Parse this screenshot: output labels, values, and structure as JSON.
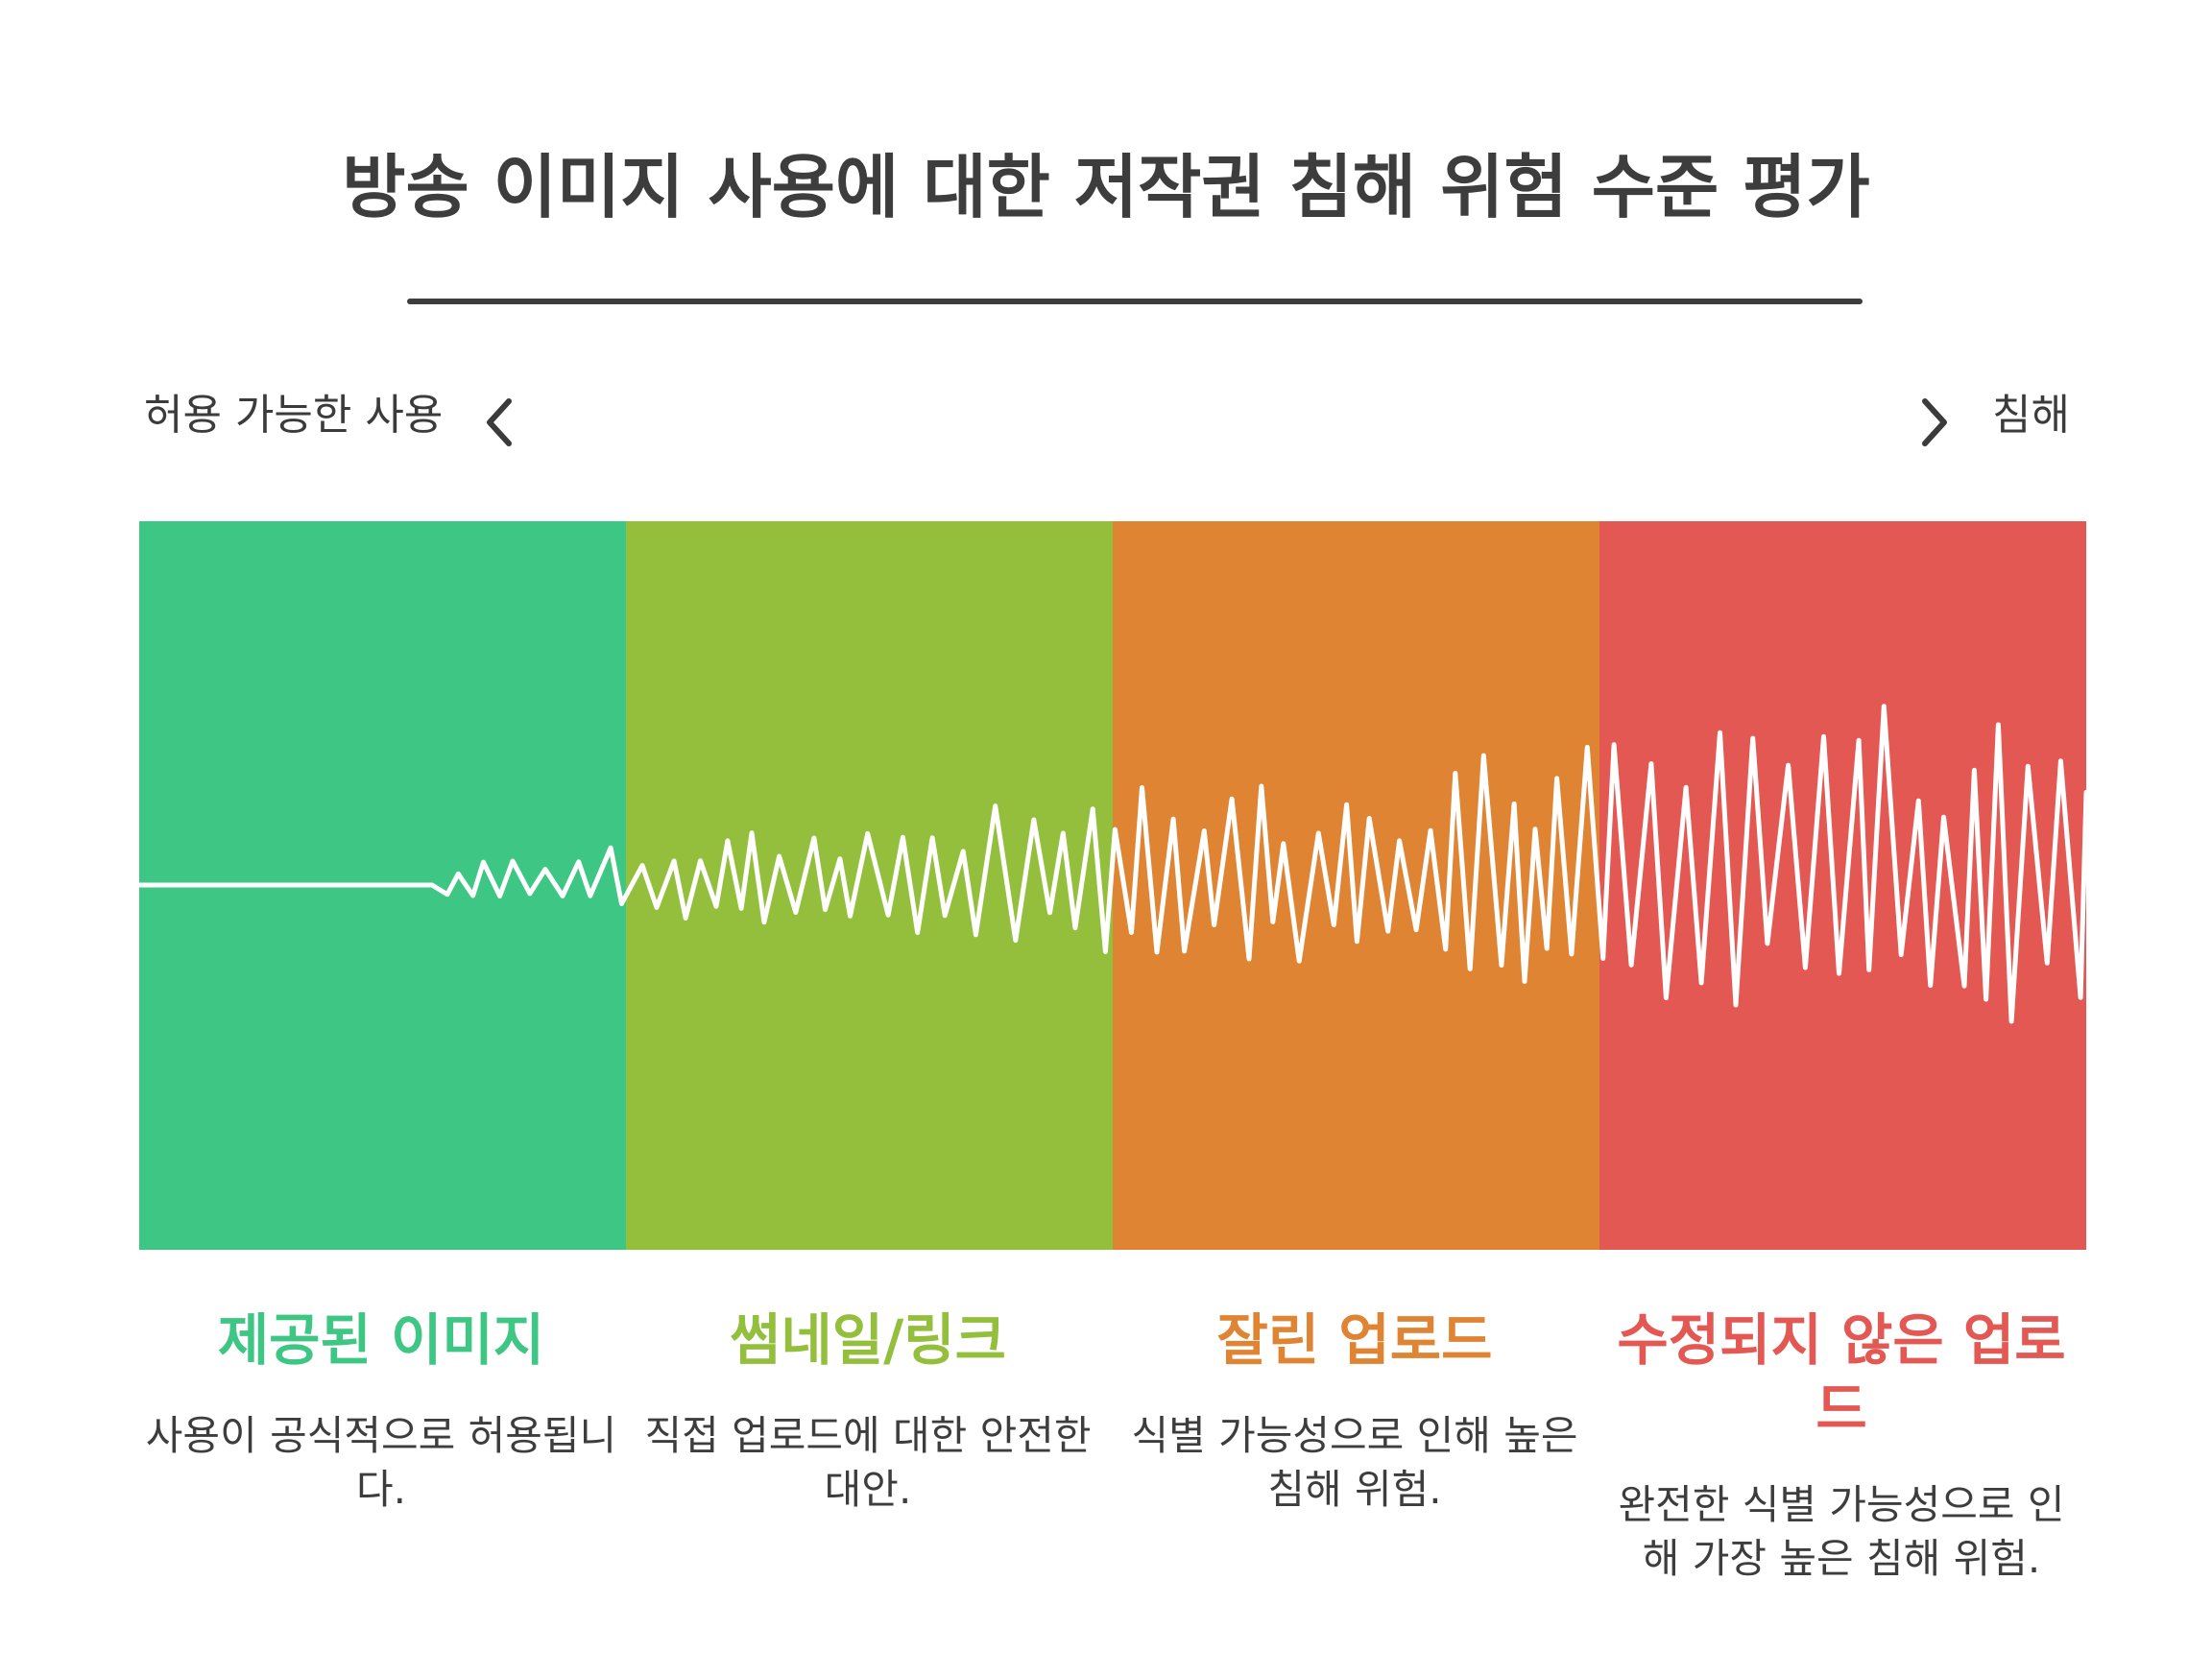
{
  "title": "방송 이미지 사용에 대한 저작권 침해 위험 수준 평가",
  "axis": {
    "left_label": "허용 가능한 사용",
    "right_label": "침해",
    "left_icon": "chevron-left-icon",
    "right_icon": "chevron-right-icon"
  },
  "levels": [
    {
      "title": "제공된 이미지",
      "description": "사용이 공식적으로 허용됩니다.",
      "color": "#3dc684"
    },
    {
      "title": "썸네일/링크",
      "description": "직접 업로드에 대한 안전한 대안.",
      "color": "#93bf3c"
    },
    {
      "title": "잘린 업로드",
      "description": "식별 가능성으로 인해 높은 침해 위험.",
      "color": "#de8432"
    },
    {
      "title": "수정되지 않은 업로드",
      "description": "완전한 식별 가능성으로 인해 가장 높은 침해 위험.",
      "color": "#e35853"
    }
  ],
  "wave_color": "#ffffff"
}
